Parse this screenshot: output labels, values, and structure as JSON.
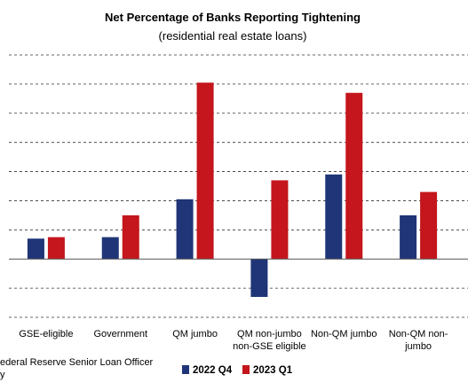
{
  "chart_data": {
    "type": "bar",
    "title": "Net Percentage of Banks Reporting Tightening",
    "subtitle": "(residential real estate loans)",
    "categories": [
      [
        "GSE-eligible"
      ],
      [
        "Government"
      ],
      [
        "QM jumbo"
      ],
      [
        "QM non-jumbo",
        "non-GSE eligible"
      ],
      [
        "Non-QM jumbo"
      ],
      [
        "Non-QM non-",
        "jumbo"
      ]
    ],
    "series": [
      {
        "name": "2022 Q4",
        "color": "#1f3577",
        "values": [
          7,
          7.5,
          20.5,
          -13,
          29,
          15
        ]
      },
      {
        "name": "2023 Q1",
        "color": "#c4161c",
        "values": [
          7.5,
          15,
          60.5,
          27,
          57,
          23
        ]
      }
    ],
    "ylim": [
      -20,
      70
    ],
    "gridlines": [
      -20,
      -10,
      10,
      20,
      30,
      40,
      50,
      60,
      70
    ],
    "grid": true,
    "legend": "bottom-right",
    "source_lines": [
      "ederal Reserve Senior Loan Officer",
      "y"
    ]
  }
}
